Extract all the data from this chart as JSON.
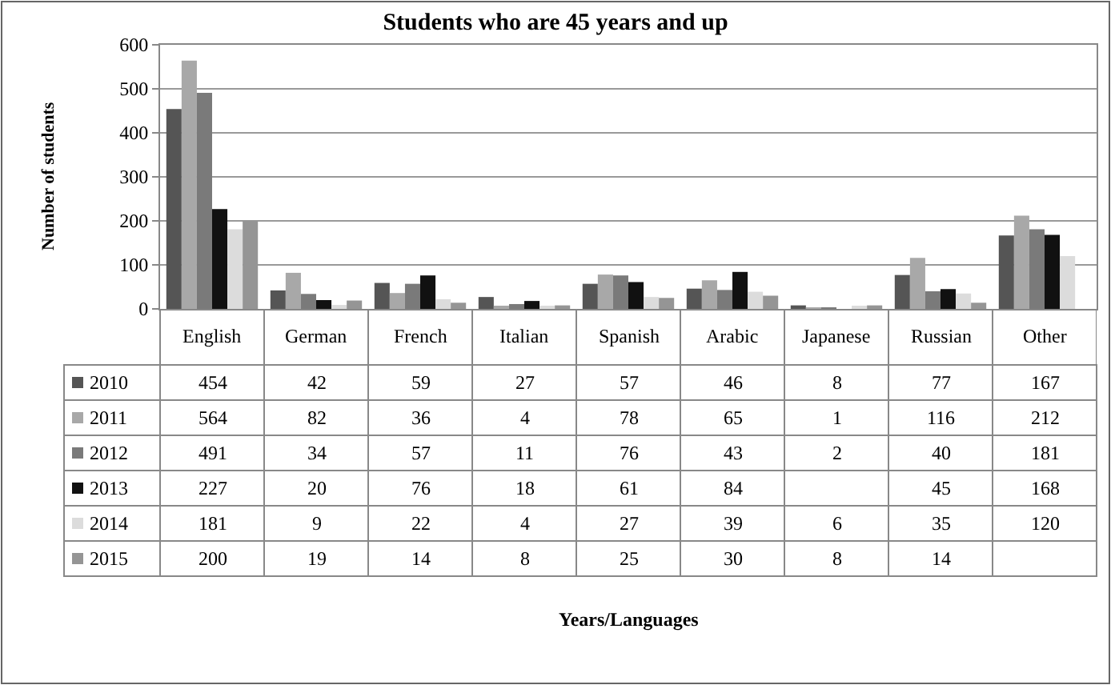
{
  "chart_data": {
    "type": "bar",
    "title": "Students who are 45 years and up",
    "annotations": [
      "Years/Languages"
    ],
    "ylabel": "Number of students",
    "categories": [
      "English",
      "German",
      "French",
      "Italian",
      "Spanish",
      "Arabic",
      "Japanese",
      "Russian",
      "Other"
    ],
    "series": [
      {
        "name": "2010",
        "color": "#555555",
        "values": [
          454,
          42,
          59,
          27,
          57,
          46,
          8,
          77,
          167
        ]
      },
      {
        "name": "2011",
        "color": "#a8a8a8",
        "values": [
          564,
          82,
          36,
          4,
          78,
          65,
          1,
          116,
          212
        ]
      },
      {
        "name": "2012",
        "color": "#7a7a7a",
        "values": [
          491,
          34,
          57,
          11,
          76,
          43,
          2,
          40,
          181
        ]
      },
      {
        "name": "2013",
        "color": "#111111",
        "values": [
          227,
          20,
          76,
          18,
          61,
          84,
          null,
          45,
          168
        ]
      },
      {
        "name": "2014",
        "color": "#dcdcdc",
        "values": [
          181,
          9,
          22,
          4,
          27,
          39,
          6,
          35,
          120
        ]
      },
      {
        "name": "2015",
        "color": "#959595",
        "values": [
          200,
          19,
          14,
          8,
          25,
          30,
          8,
          14,
          null
        ]
      }
    ],
    "ylim": [
      0,
      600
    ],
    "yticks": [
      0,
      100,
      200,
      300,
      400,
      500,
      600
    ],
    "grid": "y",
    "data_labels": true,
    "legend": "bottom"
  }
}
